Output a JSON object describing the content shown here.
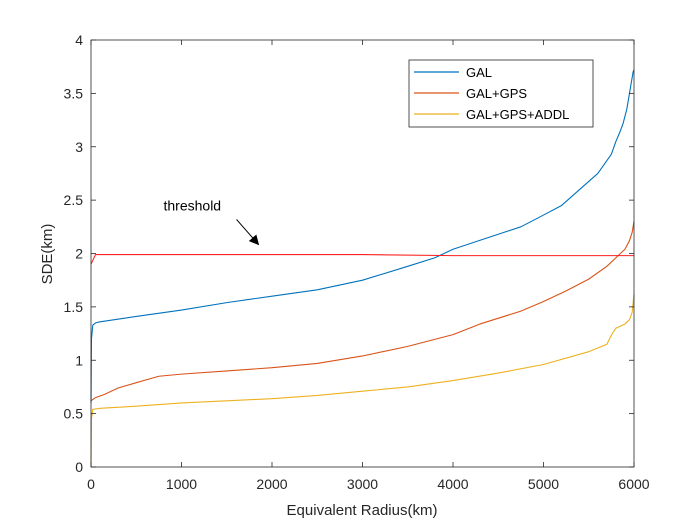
{
  "chart_data": {
    "type": "line",
    "xlabel": "Equivalent Radius(km)",
    "ylabel": "SDE(km)",
    "xlim": [
      0,
      6000
    ],
    "ylim": [
      0,
      4
    ],
    "xticks": [
      "0",
      "1000",
      "2000",
      "3000",
      "4000",
      "5000",
      "6000"
    ],
    "yticks": [
      "0",
      "0.5",
      "1",
      "1.5",
      "2",
      "2.5",
      "3",
      "3.5",
      "4"
    ],
    "grid": false,
    "legend_position": "top-right",
    "series": [
      {
        "name": "GAL",
        "color": "#0072BD",
        "x": [
          0,
          5,
          20,
          50,
          100,
          500,
          1000,
          1500,
          2000,
          2500,
          3000,
          3500,
          3800,
          4000,
          4500,
          4750,
          5000,
          5200,
          5400,
          5600,
          5750,
          5800,
          5850,
          5880,
          5920,
          5950,
          5970,
          5990,
          6000
        ],
        "y": [
          0.6,
          1.2,
          1.33,
          1.35,
          1.36,
          1.41,
          1.47,
          1.54,
          1.6,
          1.66,
          1.75,
          1.88,
          1.96,
          2.04,
          2.18,
          2.25,
          2.36,
          2.45,
          2.6,
          2.75,
          2.93,
          3.05,
          3.15,
          3.22,
          3.35,
          3.5,
          3.6,
          3.7,
          3.72
        ]
      },
      {
        "name": "GAL+GPS",
        "color": "#D95319",
        "x": [
          0,
          50,
          150,
          300,
          500,
          750,
          1000,
          1500,
          2000,
          2500,
          3000,
          3500,
          4000,
          4300,
          4750,
          5000,
          5250,
          5500,
          5700,
          5800,
          5900,
          5950,
          5980,
          6000
        ],
        "y": [
          0.62,
          0.65,
          0.68,
          0.74,
          0.79,
          0.85,
          0.87,
          0.9,
          0.93,
          0.97,
          1.04,
          1.13,
          1.24,
          1.34,
          1.46,
          1.55,
          1.65,
          1.76,
          1.88,
          1.96,
          2.04,
          2.12,
          2.2,
          2.3
        ]
      },
      {
        "name": "GAL+GPS+ADDL",
        "color": "#EDB120",
        "x": [
          0,
          5,
          20,
          100,
          500,
          1000,
          1500,
          2000,
          2500,
          3000,
          3500,
          4000,
          4500,
          5000,
          5500,
          5700,
          5760,
          5800,
          5850,
          5900,
          5950,
          5980,
          6000
        ],
        "y": [
          0.0,
          0.45,
          0.54,
          0.55,
          0.57,
          0.6,
          0.62,
          0.64,
          0.67,
          0.71,
          0.75,
          0.81,
          0.88,
          0.96,
          1.08,
          1.15,
          1.25,
          1.3,
          1.32,
          1.34,
          1.38,
          1.45,
          1.62
        ]
      },
      {
        "name": "",
        "color": "#FF2020",
        "x": [
          0,
          50,
          100,
          500,
          1000,
          2000,
          3000,
          4000,
          5000,
          5900,
          6000
        ],
        "y": [
          1.9,
          1.99,
          1.99,
          1.99,
          1.99,
          1.99,
          1.99,
          1.98,
          1.98,
          1.98,
          1.98
        ]
      }
    ],
    "annotations": [
      {
        "text": "threshold",
        "x": 1000,
        "y": 2.45,
        "arrow_to_x": 1950,
        "arrow_to_y": 2.0
      }
    ]
  }
}
